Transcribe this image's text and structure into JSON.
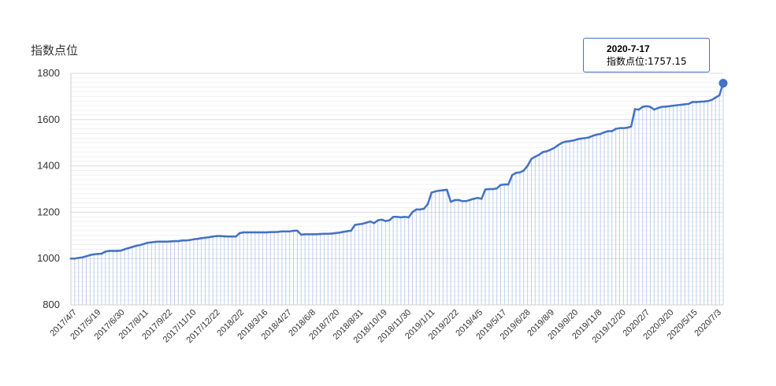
{
  "chart_data": {
    "type": "area",
    "ylabel": "指数点位",
    "ylim": [
      800,
      1800
    ],
    "yticks": [
      "800",
      "1000",
      "1200",
      "1400",
      "1600",
      "1800"
    ],
    "xticks": [
      "2017/4/7",
      "2017/5/19",
      "2017/6/30",
      "2017/8/11",
      "2017/9/22",
      "2017/11/10",
      "2017/12/22",
      "2018/2/2",
      "2018/3/16",
      "2018/4/27",
      "2018/6/8",
      "2018/7/20",
      "2018/8/31",
      "2018/10/19",
      "2018/11/30",
      "2019/1/11",
      "2019/2/22",
      "2019/4/5",
      "2019/5/17",
      "2019/6/28",
      "2019/8/9",
      "2019/9/20",
      "2019/11/8",
      "2019/12/20",
      "2020/2/7",
      "2020/3/20",
      "2020/5/15",
      "2020/7/3"
    ],
    "grid": true,
    "series": [
      {
        "color": "#4472c4",
        "values": [
          1000,
          1000,
          1003,
          1005,
          1010,
          1015,
          1018,
          1020,
          1021,
          1030,
          1033,
          1033,
          1033,
          1034,
          1040,
          1045,
          1050,
          1055,
          1058,
          1063,
          1068,
          1070,
          1072,
          1073,
          1073,
          1073,
          1074,
          1075,
          1075,
          1078,
          1078,
          1080,
          1083,
          1085,
          1088,
          1090,
          1092,
          1095,
          1097,
          1097,
          1096,
          1095,
          1095,
          1095,
          1110,
          1113,
          1113,
          1113,
          1113,
          1113,
          1113,
          1113,
          1114,
          1114,
          1115,
          1117,
          1117,
          1117,
          1120,
          1120,
          1103,
          1105,
          1105,
          1105,
          1105,
          1106,
          1107,
          1107,
          1108,
          1110,
          1112,
          1115,
          1118,
          1120,
          1145,
          1148,
          1150,
          1155,
          1160,
          1153,
          1165,
          1168,
          1162,
          1165,
          1180,
          1180,
          1178,
          1180,
          1178,
          1200,
          1212,
          1212,
          1215,
          1235,
          1285,
          1290,
          1293,
          1295,
          1297,
          1245,
          1252,
          1253,
          1248,
          1248,
          1253,
          1258,
          1262,
          1258,
          1298,
          1300,
          1300,
          1303,
          1318,
          1320,
          1320,
          1360,
          1370,
          1372,
          1380,
          1400,
          1430,
          1440,
          1448,
          1460,
          1463,
          1470,
          1478,
          1490,
          1500,
          1505,
          1507,
          1510,
          1515,
          1518,
          1520,
          1523,
          1530,
          1535,
          1538,
          1545,
          1550,
          1550,
          1560,
          1563,
          1563,
          1565,
          1570,
          1645,
          1643,
          1655,
          1658,
          1655,
          1643,
          1650,
          1655,
          1656,
          1658,
          1660,
          1662,
          1664,
          1666,
          1668,
          1676,
          1676,
          1677,
          1678,
          1680,
          1685,
          1695,
          1705,
          1757.15
        ]
      }
    ],
    "highlight": {
      "date": "2020-7-17",
      "label": "指数点位",
      "value": "1757.15",
      "text": "指数点位:1757.15"
    }
  }
}
